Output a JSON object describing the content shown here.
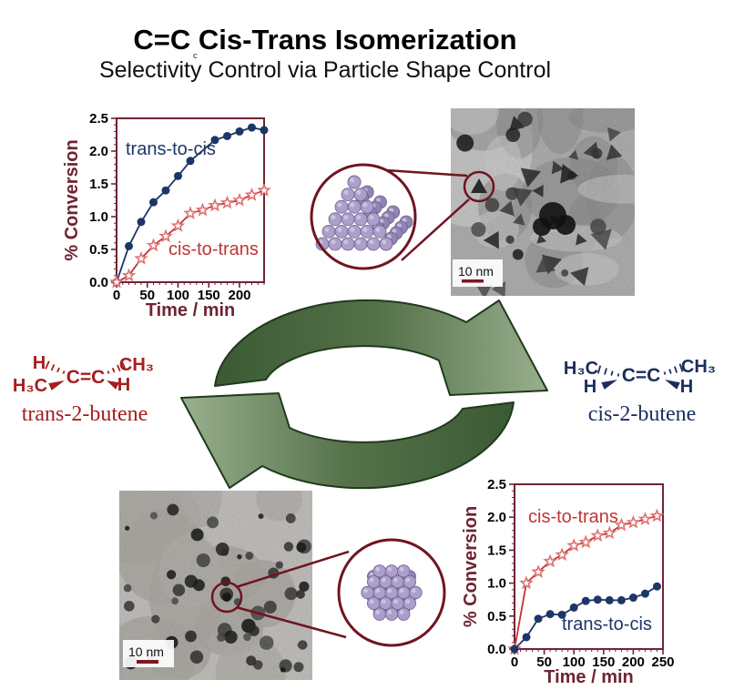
{
  "header": {
    "title": "C=C Cis-Trans Isomerization",
    "subtitle": "Selectivity Control via Particle Shape Control",
    "stray_mark": "c"
  },
  "colors": {
    "maroon_axis": "#6e2433",
    "red_series": "#c23434",
    "red_marker": "#df7070",
    "navy_series": "#1c3668",
    "molecule_red": "#a61e1e",
    "molecule_navy": "#1b2d5e",
    "green_dark": "#3b5a33",
    "green_mid": "#55724a",
    "green_light": "#99af8e",
    "green_outline": "#1f3a1c",
    "magnifier_ring": "#701420",
    "scalebar": "#7a1822",
    "sphere_purple": "#ac9fcb",
    "sphere_purple_dark": "#9184b4"
  },
  "molecules": {
    "left": {
      "name": "trans-2-butene",
      "top_left": "H",
      "bottom_left": "H₃C",
      "double_bond": "C=C",
      "top_right": "CH₃",
      "bottom_right": "H"
    },
    "right": {
      "name": "cis-2-butene",
      "top_left": "H₃C",
      "bottom_left": "H",
      "double_bond": "C=C",
      "top_right": "CH₃",
      "bottom_right": "H"
    }
  },
  "tem_top": {
    "scale_label": "10 nm"
  },
  "tem_bottom": {
    "scale_label": "10 nm"
  },
  "chart_data": [
    {
      "type": "line",
      "position": "top-left",
      "title": "",
      "xlabel": "Time / min",
      "ylabel": "% Conversion",
      "xlim": [
        0,
        240
      ],
      "ylim": [
        0,
        2.5
      ],
      "xticks": [
        0,
        50,
        100,
        150,
        200
      ],
      "yticks": [
        "0.0",
        "0.5",
        "1.0",
        "1.5",
        "2.0",
        "2.5"
      ],
      "grid": false,
      "legend_position": "inline-annotations",
      "series": [
        {
          "name": "trans-to-cis",
          "marker": "filled-circle",
          "color": "#1c3668",
          "x": [
            0,
            20,
            40,
            60,
            80,
            100,
            120,
            160,
            180,
            200,
            220,
            240
          ],
          "y": [
            0,
            0.55,
            0.92,
            1.22,
            1.4,
            1.62,
            1.85,
            2.17,
            2.23,
            2.3,
            2.36,
            2.32
          ]
        },
        {
          "name": "cis-to-trans",
          "marker": "open-star",
          "color": "#c23434",
          "marker_color": "#df7070",
          "x": [
            0,
            20,
            40,
            60,
            80,
            100,
            120,
            140,
            160,
            180,
            200,
            220,
            240
          ],
          "y": [
            0,
            0.1,
            0.36,
            0.56,
            0.7,
            0.86,
            1.05,
            1.1,
            1.17,
            1.21,
            1.25,
            1.33,
            1.4
          ]
        }
      ],
      "annotations": [
        {
          "text": "trans-to-cis",
          "color": "#1c3668"
        },
        {
          "text": "cis-to-trans",
          "color": "#c23434"
        }
      ]
    },
    {
      "type": "line",
      "position": "bottom-right",
      "title": "",
      "xlabel": "Time / min",
      "ylabel": "% Conversion",
      "xlim": [
        0,
        250
      ],
      "ylim": [
        0,
        2.5
      ],
      "xticks": [
        0,
        50,
        100,
        150,
        200,
        250
      ],
      "yticks": [
        "0.0",
        "0.5",
        "1.0",
        "1.5",
        "2.0",
        "2.5"
      ],
      "grid": false,
      "legend_position": "inline-annotations",
      "series": [
        {
          "name": "cis-to-trans",
          "marker": "open-star",
          "color": "#c23434",
          "marker_color": "#df7070",
          "x": [
            0,
            20,
            40,
            60,
            80,
            100,
            120,
            140,
            160,
            180,
            200,
            220,
            240
          ],
          "y": [
            0,
            1.0,
            1.17,
            1.33,
            1.43,
            1.57,
            1.62,
            1.72,
            1.76,
            1.88,
            1.92,
            1.97,
            2.02
          ]
        },
        {
          "name": "trans-to-cis",
          "marker": "filled-circle",
          "color": "#1c3668",
          "x": [
            0,
            20,
            40,
            60,
            80,
            100,
            120,
            140,
            160,
            180,
            200,
            220,
            240
          ],
          "y": [
            0,
            0.18,
            0.46,
            0.53,
            0.52,
            0.63,
            0.73,
            0.75,
            0.74,
            0.74,
            0.78,
            0.84,
            0.95
          ]
        }
      ],
      "annotations": [
        {
          "text": "cis-to-trans",
          "color": "#c23434"
        },
        {
          "text": "trans-to-cis",
          "color": "#1c3668"
        }
      ]
    }
  ]
}
